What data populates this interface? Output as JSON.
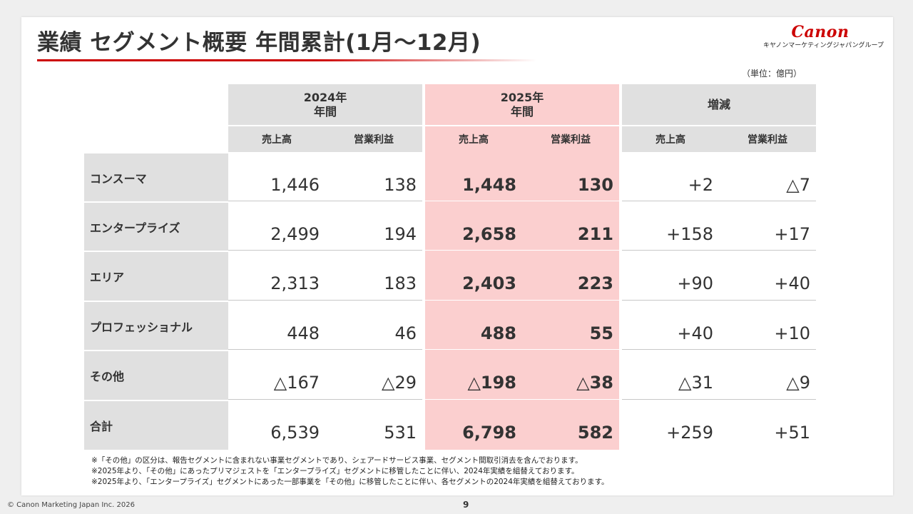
{
  "title": "業績 セグメント概要 年間累計(1月～12月)",
  "logo": {
    "brand": "Canon",
    "sub": "キヤノンマーケティングジャパングループ"
  },
  "unit_note": "（単位：億円）",
  "header": {
    "col2024": {
      "year": "2024年",
      "period": "年間"
    },
    "col2025": {
      "year": "2025年",
      "period": "年間"
    },
    "diff": "増減",
    "sales": "売上高",
    "profit": "営業利益"
  },
  "rows": [
    {
      "label": "コンスーマ",
      "s24": "1,446",
      "p24": "138",
      "s25": "1,448",
      "p25": "130",
      "ds": "+2",
      "dp": "△7"
    },
    {
      "label": "エンタープライズ",
      "s24": "2,499",
      "p24": "194",
      "s25": "2,658",
      "p25": "211",
      "ds": "+158",
      "dp": "+17"
    },
    {
      "label": "エリア",
      "s24": "2,313",
      "p24": "183",
      "s25": "2,403",
      "p25": "223",
      "ds": "+90",
      "dp": "+40"
    },
    {
      "label": "プロフェッショナル",
      "s24": "448",
      "p24": "46",
      "s25": "488",
      "p25": "55",
      "ds": "+40",
      "dp": "+10"
    },
    {
      "label": "その他",
      "s24": "△167",
      "p24": "△29",
      "s25": "△198",
      "p25": "△38",
      "ds": "△31",
      "dp": "△9"
    },
    {
      "label": "合計",
      "s24": "6,539",
      "p24": "531",
      "s25": "6,798",
      "p25": "582",
      "ds": "+259",
      "dp": "+51"
    }
  ],
  "notes": [
    "※「その他」の区分は、報告セグメントに含まれない事業セグメントであり、シェアードサービス事業、セグメント間取引消去を含んでおります。",
    "※2025年より、「その他」にあったプリマジェストを「エンタープライズ」セグメントに移管したことに伴い、2024年実績を組替えております。",
    "※2025年より、「エンタープライズ」セグメントにあった一部事業を「その他」に移管したことに伴い、各セグメントの2024年実績を組替えております。"
  ],
  "footer": {
    "copyright": "© Canon Marketing Japan Inc. 2026",
    "page": "9"
  },
  "colors": {
    "accent": "#cc0000",
    "highlight": "#fbcfcf",
    "header_gray": "#e0e0e0"
  }
}
